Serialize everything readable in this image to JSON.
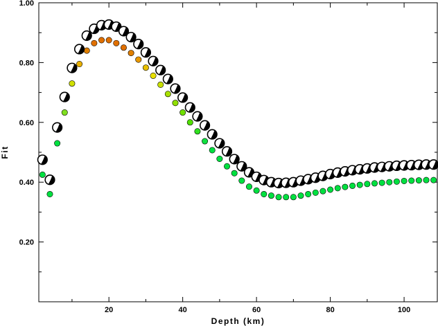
{
  "chart_data": {
    "type": "scatter",
    "xlabel": "Depth (km)",
    "ylabel": "Fit",
    "xlim": [
      1,
      109
    ],
    "ylim": [
      0.0,
      1.0
    ],
    "x_ticks": [
      20,
      40,
      60,
      80,
      100
    ],
    "x_tick_labels": [
      "20",
      "40",
      "60",
      "80",
      "100"
    ],
    "y_ticks": [
      0.2,
      0.4,
      0.6,
      0.8,
      1.0
    ],
    "y_tick_labels": [
      "0.20",
      "0.40",
      "0.60",
      "0.80",
      "1.00"
    ],
    "grid": false,
    "series": [
      {
        "marker": "focal-mechanism",
        "color": "#000000",
        "x": [
          2,
          4,
          6,
          8,
          10,
          12,
          14,
          16,
          18,
          20,
          22,
          24,
          26,
          28,
          30,
          32,
          34,
          36,
          38,
          40,
          42,
          44,
          46,
          48,
          50,
          52,
          54,
          56,
          58,
          60,
          62,
          64,
          66,
          68,
          70,
          72,
          74,
          76,
          78,
          80,
          82,
          84,
          86,
          88,
          90,
          92,
          94,
          96,
          98,
          100,
          102,
          104,
          106,
          108
        ],
        "y": [
          0.475,
          0.408,
          0.583,
          0.685,
          0.782,
          0.845,
          0.89,
          0.913,
          0.925,
          0.927,
          0.92,
          0.905,
          0.885,
          0.862,
          0.834,
          0.805,
          0.775,
          0.745,
          0.713,
          0.683,
          0.65,
          0.62,
          0.59,
          0.56,
          0.53,
          0.503,
          0.477,
          0.453,
          0.433,
          0.418,
          0.407,
          0.4,
          0.397,
          0.398,
          0.4,
          0.405,
          0.41,
          0.415,
          0.421,
          0.427,
          0.432,
          0.436,
          0.44,
          0.443,
          0.446,
          0.449,
          0.451,
          0.453,
          0.455,
          0.456,
          0.457,
          0.458,
          0.459,
          0.459
        ]
      },
      {
        "marker": "circle",
        "x": [
          2,
          4,
          6,
          8,
          10,
          12,
          14,
          16,
          18,
          20,
          22,
          24,
          26,
          28,
          30,
          32,
          34,
          36,
          38,
          40,
          42,
          44,
          46,
          48,
          50,
          52,
          54,
          56,
          58,
          60,
          62,
          64,
          66,
          68,
          70,
          72,
          74,
          76,
          78,
          80,
          82,
          84,
          86,
          88,
          90,
          92,
          94,
          96,
          98,
          100,
          102,
          104,
          106,
          108
        ],
        "y": [
          0.425,
          0.36,
          0.53,
          0.633,
          0.73,
          0.795,
          0.84,
          0.865,
          0.875,
          0.875,
          0.865,
          0.85,
          0.832,
          0.81,
          0.783,
          0.756,
          0.726,
          0.695,
          0.665,
          0.633,
          0.6,
          0.57,
          0.537,
          0.507,
          0.478,
          0.453,
          0.43,
          0.405,
          0.385,
          0.372,
          0.36,
          0.355,
          0.35,
          0.35,
          0.35,
          0.355,
          0.36,
          0.365,
          0.37,
          0.375,
          0.38,
          0.384,
          0.388,
          0.391,
          0.394,
          0.396,
          0.398,
          0.4,
          0.402,
          0.404,
          0.405,
          0.406,
          0.407,
          0.407
        ],
        "colors": [
          "#00e040",
          "#00e040",
          "#00e040",
          "#80e020",
          "#d0e000",
          "#e8b000",
          "#e08000",
          "#e07000",
          "#e07000",
          "#e07000",
          "#e07000",
          "#e07000",
          "#e08000",
          "#e89800",
          "#e8c000",
          "#e8e000",
          "#c8e000",
          "#a8e000",
          "#90e000",
          "#70e000",
          "#50e000",
          "#30e020",
          "#10e040",
          "#00e040",
          "#00e040",
          "#00e040",
          "#00e040",
          "#00e040",
          "#00e040",
          "#00e040",
          "#00e040",
          "#00e040",
          "#00e040",
          "#00e040",
          "#00e040",
          "#00e040",
          "#00e040",
          "#00e040",
          "#00e040",
          "#00e040",
          "#00e040",
          "#00e040",
          "#00e040",
          "#00e040",
          "#00e040",
          "#00e040",
          "#00e040",
          "#00e040",
          "#00e040",
          "#00e040",
          "#00e040",
          "#00e040",
          "#00e040",
          "#00e040"
        ]
      }
    ]
  }
}
